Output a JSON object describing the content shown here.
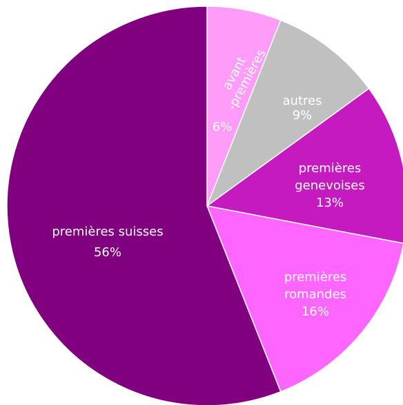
{
  "chart_data": {
    "type": "pie",
    "title": "",
    "start": "12 o'clock",
    "direction": "clockwise",
    "slices": [
      {
        "key": "avant",
        "label_lines": [
          "avant",
          "-premières"
        ],
        "value_label": "6%",
        "value": 6,
        "color": "#FF9BF9"
      },
      {
        "key": "autres",
        "label_lines": [
          "autres"
        ],
        "value_label": "9%",
        "value": 9,
        "color": "#C0C0C0"
      },
      {
        "key": "genevoises",
        "label_lines": [
          "premières",
          "genevoises"
        ],
        "value_label": "13%",
        "value": 13,
        "color": "#C41ABF"
      },
      {
        "key": "romandes",
        "label_lines": [
          "premières",
          "romandes"
        ],
        "value_label": "16%",
        "value": 16,
        "color": "#FF66FF"
      },
      {
        "key": "suisses",
        "label_lines": [
          "premières suisses"
        ],
        "value_label": "56%",
        "value": 56,
        "color": "#800080"
      }
    ]
  }
}
